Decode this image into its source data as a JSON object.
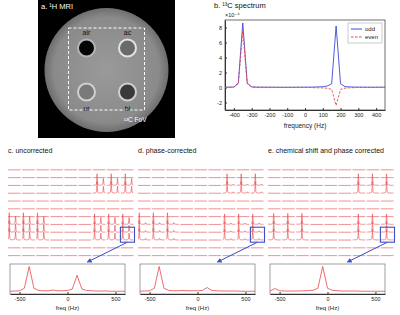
{
  "chart_data": [
    {
      "type": "image",
      "title": "a. ¹H MRI",
      "annotations": [
        "air",
        "ac",
        "ur",
        "bi",
        "¹³C FoV"
      ]
    },
    {
      "type": "line",
      "title": "b. ¹³C spectrum",
      "x_label": "frequency (Hz)",
      "annotations": [
        "×10⁻⁴"
      ],
      "x": [
        -450,
        -425,
        -400,
        -375,
        -350,
        -325,
        -300,
        -275,
        -250,
        -225,
        -200,
        -175,
        -150,
        -125,
        -100,
        -75,
        -50,
        -25,
        0,
        25,
        50,
        75,
        100,
        125,
        150,
        175,
        200,
        225,
        250,
        275,
        300,
        325,
        350,
        375,
        400,
        425,
        450
      ],
      "series": [
        {
          "name": "odd",
          "color": "#3f48d8",
          "line_style": "solid",
          "values": [
            0.05,
            0.05,
            0.06,
            0.6,
            8.6,
            0.6,
            0.08,
            0.05,
            0.04,
            0.04,
            0.04,
            0.04,
            0.03,
            0.03,
            0.03,
            0.03,
            0.04,
            0.04,
            0.05,
            0.05,
            0.06,
            0.08,
            0.1,
            0.2,
            0.5,
            8.2,
            0.5,
            0.12,
            0.08,
            0.06,
            0.05,
            0.05,
            0.04,
            0.04,
            0.04,
            0.04,
            0.04
          ]
        },
        {
          "name": "even",
          "color": "#e8474a",
          "line_style": "dashed",
          "values": [
            0.03,
            0.03,
            0.05,
            0.5,
            7.6,
            0.5,
            0.06,
            0.04,
            0.03,
            0.03,
            0.02,
            0.02,
            0.02,
            0.02,
            0.02,
            0.02,
            0.02,
            0.02,
            0.01,
            0.0,
            -0.02,
            -0.04,
            -0.06,
            -0.1,
            -0.25,
            -2.4,
            -0.25,
            -0.08,
            -0.04,
            -0.02,
            0.0,
            0.01,
            0.01,
            0.01,
            0.02,
            0.02,
            0.02
          ]
        }
      ],
      "xlim": [
        -450,
        450
      ],
      "xticks": [
        -400,
        -300,
        -200,
        -100,
        0,
        100,
        200,
        300,
        400
      ],
      "ylim": [
        -3,
        9
      ],
      "yticks": [
        -2,
        0,
        2,
        4,
        6,
        8
      ],
      "legend": "upper right"
    },
    {
      "type": "spectra",
      "title": "c. uncorrected",
      "color": "#e8474a",
      "tick_labels": false,
      "x": [
        -500,
        -450,
        -400,
        -350,
        -300,
        -250,
        -200,
        -150,
        -100,
        -50,
        0,
        50,
        100,
        150,
        200,
        250,
        300,
        350,
        400,
        450,
        500
      ],
      "xlim": [
        -500,
        500
      ],
      "ylim": [
        -0.1,
        1.1
      ],
      "series": [
        {
          "values": [
            0.01,
            0.01,
            0.01,
            0.02,
            0.02,
            0.04,
            0.12,
            1.0,
            0.12,
            0.04,
            0.02,
            0.02,
            0.02,
            0.02,
            0.03,
            0.04,
            0.08,
            0.6,
            0.08,
            0.03,
            0.02
          ]
        },
        {
          "values": [
            0.04,
            0.12,
            1.0,
            0.12,
            0.04,
            0.02,
            0.02,
            0.02,
            0.02,
            0.03,
            0.04,
            0.08,
            0.7,
            0.08,
            0.03,
            0.02,
            0.01,
            0.01,
            0.01,
            0.01,
            0.01
          ]
        },
        {
          "values": [
            0.02,
            0.04,
            0.11,
            0.9,
            0.11,
            0.04,
            0.02,
            0.02,
            0.02,
            0.02,
            0.03,
            0.04,
            0.08,
            0.6,
            0.08,
            0.03,
            0.02,
            0.01,
            0.01,
            0.01,
            0.01
          ]
        }
      ],
      "cells": [
        [
          null,
          null,
          null,
          null,
          null,
          null,
          null,
          null,
          null
        ],
        [
          null,
          null,
          null,
          null,
          null,
          null,
          null,
          null,
          null
        ],
        [
          null,
          null,
          null,
          null,
          null,
          null,
          0,
          0,
          0
        ],
        [
          null,
          null,
          null,
          null,
          null,
          null,
          0,
          0,
          0
        ],
        [
          null,
          null,
          null,
          null,
          null,
          null,
          null,
          null,
          null
        ],
        [
          null,
          null,
          null,
          null,
          null,
          null,
          null,
          null,
          null
        ],
        [
          null,
          null,
          null,
          null,
          null,
          null,
          null,
          null,
          null
        ],
        [
          1,
          1,
          1,
          null,
          null,
          null,
          2,
          2,
          2
        ],
        [
          1,
          1,
          1,
          null,
          null,
          null,
          2,
          2,
          2
        ],
        [
          1,
          1,
          1,
          null,
          null,
          null,
          2,
          2,
          2
        ],
        [
          null,
          null,
          null,
          null,
          null,
          null,
          null,
          null,
          null
        ],
        [
          null,
          null,
          null,
          null,
          null,
          null,
          null,
          null,
          null
        ]
      ],
      "inset": {
        "type": "line",
        "x_label": "freq (Hz)",
        "color": "#e8474a",
        "tick_labels": "x",
        "x": [
          -600,
          -550,
          -500,
          -450,
          -400,
          -350,
          -300,
          -250,
          -200,
          -150,
          -100,
          -50,
          0,
          50,
          100,
          150,
          200,
          250,
          300,
          350,
          400,
          450,
          500,
          550,
          600
        ],
        "values": [
          0.01,
          0.02,
          0.03,
          0.13,
          1.0,
          0.13,
          0.04,
          0.03,
          0.03,
          0.06,
          0.03,
          0.03,
          0.04,
          0.1,
          0.65,
          0.1,
          0.04,
          0.03,
          0.02,
          0.02,
          0.02,
          0.01,
          0.01,
          0.01,
          0.01
        ],
        "xlim": [
          -600,
          600
        ],
        "xticks": [
          -500,
          0,
          500
        ],
        "ylim": [
          -0.1,
          1.1
        ]
      }
    },
    {
      "type": "spectra",
      "title": "d. phase-corrected",
      "color": "#e8474a",
      "tick_labels": false,
      "x": [
        -500,
        -450,
        -400,
        -350,
        -300,
        -250,
        -200,
        -150,
        -100,
        -50,
        0,
        50,
        100,
        150,
        200,
        250,
        300,
        350,
        400,
        450,
        500
      ],
      "xlim": [
        -500,
        500
      ],
      "ylim": [
        -0.1,
        1.1
      ],
      "series": [
        {
          "values": [
            0.01,
            0.01,
            0.01,
            0.02,
            0.02,
            0.04,
            0.12,
            1.0,
            0.12,
            0.04,
            0.02,
            0.02,
            0.02,
            0.02,
            0.02,
            0.02,
            0.03,
            0.12,
            0.03,
            0.02,
            0.02
          ]
        },
        {
          "values": [
            0.04,
            0.12,
            1.0,
            0.12,
            0.04,
            0.02,
            0.02,
            0.02,
            0.02,
            0.02,
            0.02,
            0.03,
            0.15,
            0.03,
            0.02,
            0.02,
            0.01,
            0.01,
            0.01,
            0.01,
            0.01
          ]
        },
        {
          "values": [
            0.02,
            0.04,
            0.11,
            0.9,
            0.11,
            0.04,
            0.02,
            0.02,
            0.02,
            0.02,
            0.02,
            0.02,
            0.03,
            0.12,
            0.03,
            0.02,
            0.02,
            0.01,
            0.01,
            0.01,
            0.01
          ]
        }
      ],
      "cells": [
        [
          null,
          null,
          null,
          null,
          null,
          null,
          null,
          null,
          null
        ],
        [
          null,
          null,
          null,
          null,
          null,
          null,
          null,
          null,
          null
        ],
        [
          null,
          null,
          null,
          null,
          null,
          null,
          0,
          0,
          0
        ],
        [
          null,
          null,
          null,
          null,
          null,
          null,
          0,
          0,
          0
        ],
        [
          null,
          null,
          null,
          null,
          null,
          null,
          null,
          null,
          null
        ],
        [
          null,
          null,
          null,
          null,
          null,
          null,
          null,
          null,
          null
        ],
        [
          null,
          null,
          null,
          null,
          null,
          null,
          null,
          null,
          null
        ],
        [
          1,
          1,
          1,
          null,
          null,
          null,
          2,
          2,
          2
        ],
        [
          1,
          1,
          1,
          null,
          null,
          null,
          2,
          2,
          2
        ],
        [
          1,
          1,
          1,
          null,
          null,
          null,
          2,
          2,
          2
        ],
        [
          null,
          null,
          null,
          null,
          null,
          null,
          null,
          null,
          null
        ],
        [
          null,
          null,
          null,
          null,
          null,
          null,
          null,
          null,
          null
        ]
      ],
      "inset": {
        "type": "line",
        "x_label": "freq (Hz)",
        "color": "#e8474a",
        "tick_labels": "x",
        "x": [
          -600,
          -550,
          -500,
          -450,
          -400,
          -350,
          -300,
          -250,
          -200,
          -150,
          -100,
          -50,
          0,
          50,
          100,
          150,
          200,
          250,
          300,
          350,
          400,
          450,
          500,
          550,
          600
        ],
        "values": [
          0.01,
          0.02,
          0.03,
          0.13,
          1.0,
          0.13,
          0.04,
          0.03,
          0.03,
          0.04,
          0.03,
          0.03,
          0.03,
          0.04,
          0.16,
          0.04,
          0.03,
          0.02,
          0.02,
          0.02,
          0.02,
          0.01,
          0.01,
          0.01,
          0.01
        ],
        "xlim": [
          -600,
          600
        ],
        "xticks": [
          -500,
          0,
          500
        ],
        "ylim": [
          -0.1,
          1.1
        ]
      }
    },
    {
      "type": "spectra",
      "title": "e. chemical shift and phase corrected",
      "color": "#e8474a",
      "tick_labels": false,
      "x": [
        -500,
        -450,
        -400,
        -350,
        -300,
        -250,
        -200,
        -150,
        -100,
        -50,
        0,
        50,
        100,
        150,
        200,
        250,
        300,
        350,
        400,
        450,
        500
      ],
      "xlim": [
        -500,
        500
      ],
      "ylim": [
        -0.1,
        1.1
      ],
      "series": [
        {
          "values": [
            0.01,
            0.01,
            0.01,
            0.01,
            0.02,
            0.02,
            0.03,
            0.04,
            0.12,
            1.0,
            0.12,
            0.04,
            0.03,
            0.02,
            0.02,
            0.02,
            0.01,
            0.01,
            0.01,
            0.02,
            0.01
          ]
        },
        {
          "values": [
            0.02,
            0.03,
            0.02,
            0.02,
            0.02,
            0.02,
            0.03,
            0.04,
            0.11,
            0.95,
            0.11,
            0.04,
            0.03,
            0.02,
            0.02,
            0.01,
            0.01,
            0.01,
            0.01,
            0.01,
            0.01
          ]
        },
        {
          "values": [
            0.01,
            0.01,
            0.02,
            0.03,
            0.02,
            0.02,
            0.03,
            0.04,
            0.1,
            0.9,
            0.1,
            0.04,
            0.03,
            0.02,
            0.02,
            0.01,
            0.01,
            0.01,
            0.01,
            0.01,
            0.01
          ]
        }
      ],
      "cells": [
        [
          null,
          null,
          null,
          null,
          null,
          null,
          null,
          null,
          null
        ],
        [
          null,
          null,
          null,
          null,
          null,
          null,
          null,
          null,
          null
        ],
        [
          null,
          null,
          null,
          null,
          null,
          null,
          0,
          0,
          0
        ],
        [
          null,
          null,
          null,
          null,
          null,
          null,
          0,
          0,
          0
        ],
        [
          null,
          null,
          null,
          null,
          null,
          null,
          null,
          null,
          null
        ],
        [
          null,
          null,
          null,
          null,
          null,
          null,
          null,
          null,
          null
        ],
        [
          null,
          null,
          null,
          null,
          null,
          null,
          null,
          null,
          null
        ],
        [
          1,
          1,
          1,
          null,
          null,
          null,
          2,
          2,
          2
        ],
        [
          1,
          1,
          1,
          null,
          null,
          null,
          2,
          2,
          2
        ],
        [
          1,
          1,
          1,
          null,
          null,
          null,
          2,
          2,
          2
        ],
        [
          null,
          null,
          null,
          null,
          null,
          null,
          null,
          null,
          null
        ],
        [
          null,
          null,
          null,
          null,
          null,
          null,
          null,
          null,
          null
        ]
      ],
      "inset": {
        "type": "line",
        "x_label": "freq (Hz)",
        "color": "#e8474a",
        "tick_labels": "x",
        "x": [
          -600,
          -550,
          -500,
          -450,
          -400,
          -350,
          -300,
          -250,
          -200,
          -150,
          -100,
          -50,
          0,
          50,
          100,
          150,
          200,
          250,
          300,
          350,
          400,
          450,
          500,
          550,
          600
        ],
        "values": [
          0.02,
          0.12,
          0.03,
          0.02,
          0.02,
          0.02,
          0.02,
          0.03,
          0.04,
          0.05,
          0.13,
          1.0,
          0.13,
          0.05,
          0.03,
          0.02,
          0.02,
          0.02,
          0.02,
          0.01,
          0.01,
          0.01,
          0.01,
          0.01,
          0.01
        ],
        "xlim": [
          -600,
          600
        ],
        "xticks": [
          -500,
          0,
          500
        ],
        "ylim": [
          -0.1,
          1.1
        ]
      }
    }
  ]
}
